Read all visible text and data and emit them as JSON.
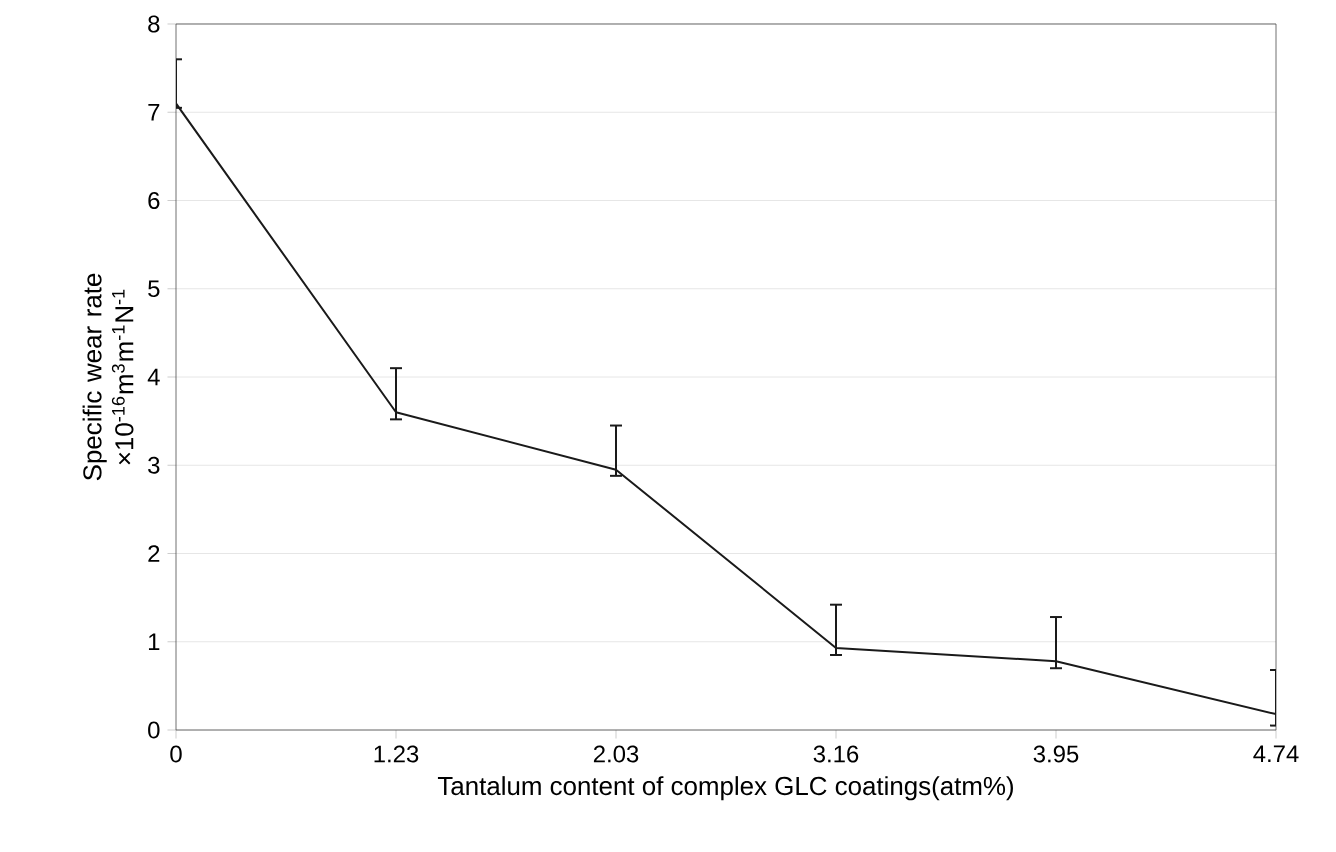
{
  "chart_data": {
    "type": "line",
    "xlabel": "Tantalum content of complex GLC coatings(atm%)",
    "ylabel": "Specific wear rate ×10$^{-16}$m$^{3}$m$^{-1}$N$^{-1}$",
    "categories": [
      "0",
      "1.23",
      "2.03",
      "3.16",
      "3.95",
      "4.74"
    ],
    "values": [
      7.1,
      3.6,
      2.95,
      0.93,
      0.78,
      0.18
    ],
    "errors": [
      [
        7.05,
        7.6
      ],
      [
        3.52,
        4.1
      ],
      [
        2.88,
        3.45
      ],
      [
        0.85,
        1.42
      ],
      [
        0.7,
        1.28
      ],
      [
        0.05,
        0.68
      ]
    ],
    "color": "#1a1a1a",
    "ylim": [
      0,
      8
    ],
    "yticks": [
      0,
      1,
      2,
      3,
      4,
      5,
      6,
      7,
      8
    ],
    "grid": "y",
    "marker": "none",
    "line_style": "solid"
  }
}
